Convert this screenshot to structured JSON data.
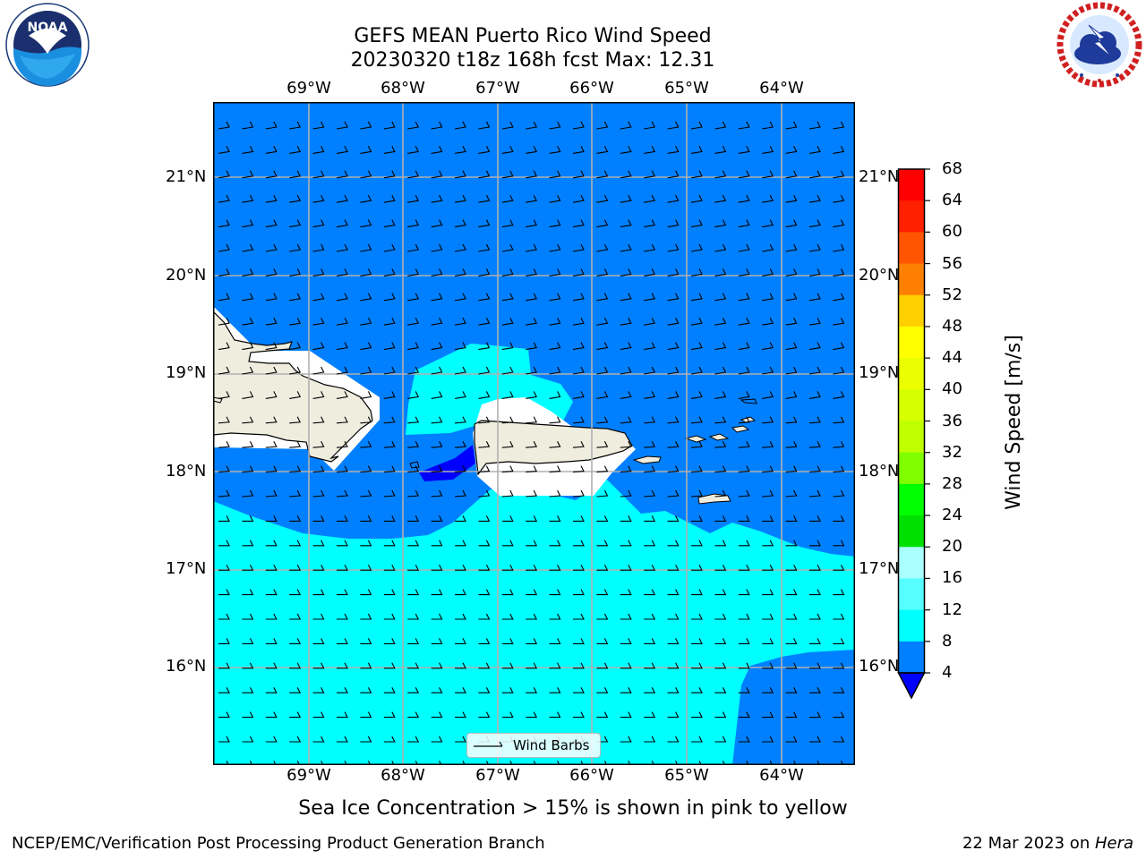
{
  "title": {
    "line1": "GEFS MEAN Puerto Rico Wind Speed",
    "line2": "20230320 t18z 168h fcst   Max: 12.31"
  },
  "logos": {
    "left": {
      "name": "noaa-logo",
      "text": "NOAA",
      "ring_text": "NATIONAL OCEANIC AND ATMOSPHERIC ADMINISTRATION · U.S. DEPARTMENT OF COMMERCE"
    },
    "right": {
      "name": "nws-logo",
      "ring_text": "NATIONAL WEATHER SERVICE"
    }
  },
  "map": {
    "lon_labels": [
      "69°W",
      "68°W",
      "67°W",
      "66°W",
      "65°W",
      "64°W"
    ],
    "lat_labels": [
      "21°N",
      "20°N",
      "19°N",
      "18°N",
      "17°N",
      "16°N"
    ],
    "lat_labels_right": [
      "21°N",
      "20°N",
      "19°N",
      "18°N",
      "17°N",
      "16°N"
    ],
    "legend_label": "Wind Barbs",
    "colors": {
      "ocean_4_8": "#0080ff",
      "ocean_8_12": "#00ffff",
      "below_4": "#0000ff",
      "land": "#efedde",
      "no_data": "#ffffff",
      "grid": "#b0b0b0"
    }
  },
  "colorbar": {
    "label": "Wind Speed [m/s]",
    "ticks": [
      "68",
      "64",
      "60",
      "56",
      "52",
      "48",
      "44",
      "40",
      "36",
      "32",
      "28",
      "24",
      "20",
      "16",
      "12",
      "8",
      "4"
    ],
    "colors": [
      "#ff0000",
      "#ff2000",
      "#ff5500",
      "#ff8000",
      "#ffaa00",
      "#ffd000",
      "#ffff00",
      "#ecff00",
      "#d6ff00",
      "#bfff00",
      "#7fff00",
      "#00ff00",
      "#00e000",
      "#4dff7f",
      "#aaffff",
      "#55ffff",
      "#00ffff",
      "#0080ff"
    ],
    "under_color": "#0000ff"
  },
  "caption": "Sea Ice Concentration > 15% is shown in pink to yellow",
  "footer": {
    "left": "NCEP/EMC/Verification Post Processing Product Generation Branch",
    "date": "22 Mar 2023 on ",
    "machine": "Hera"
  }
}
